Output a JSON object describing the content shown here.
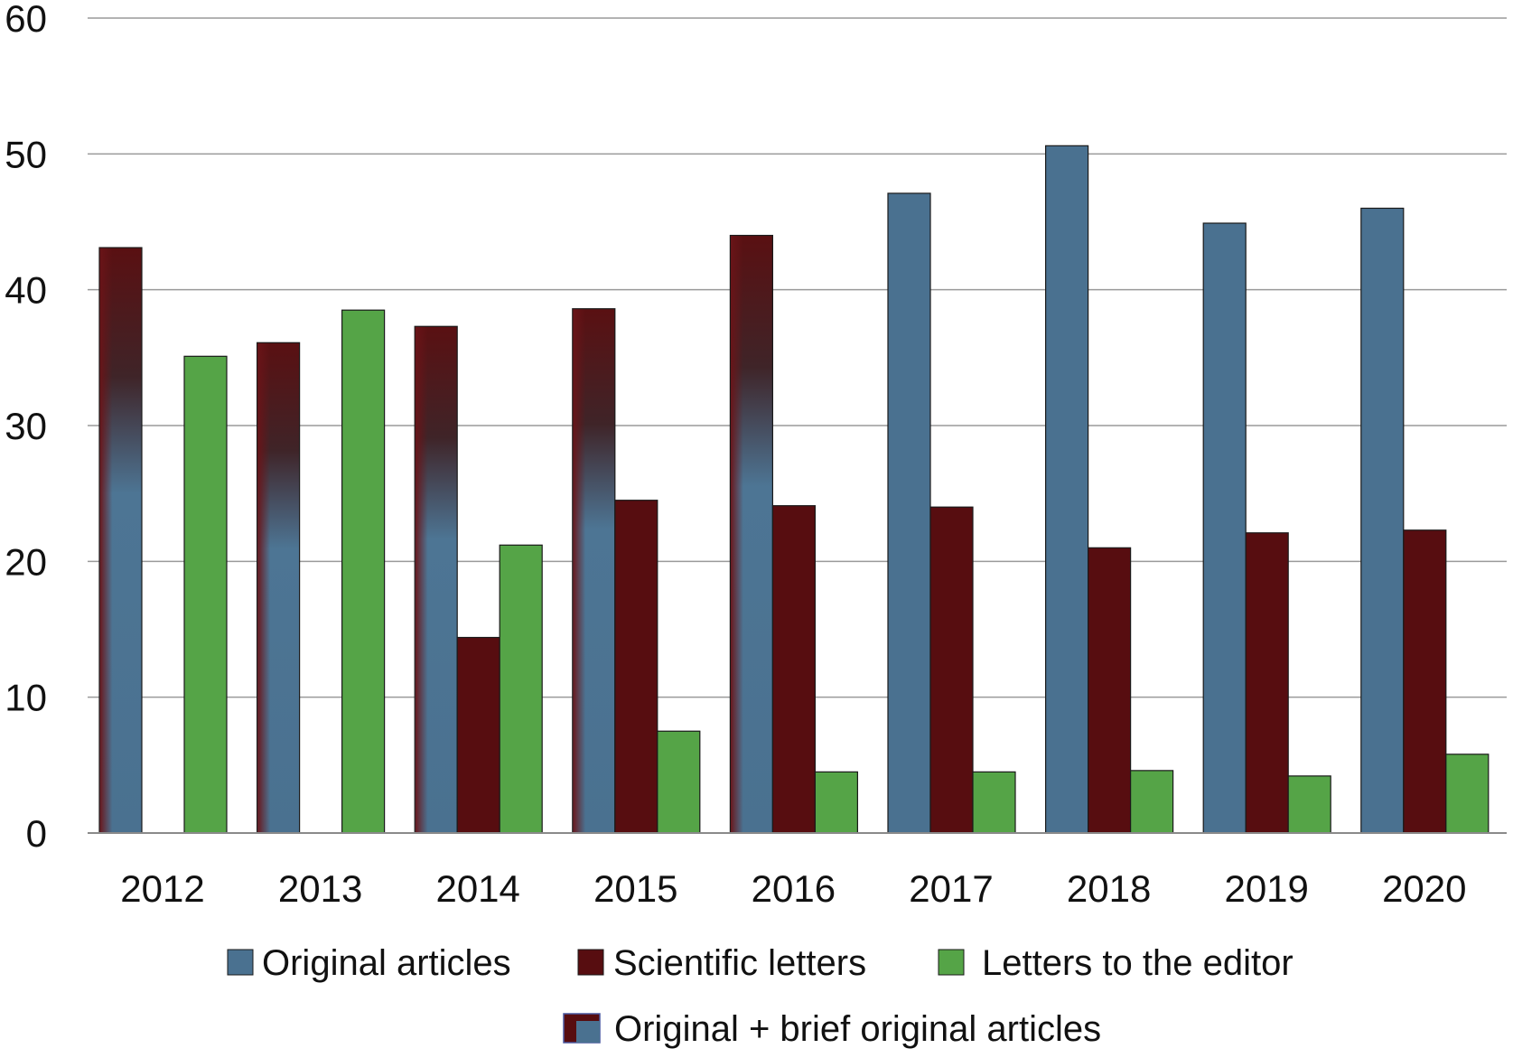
{
  "chart_data": {
    "type": "bar",
    "title": "",
    "xlabel": "",
    "ylabel": "",
    "ylim": [
      0,
      60
    ],
    "yticks": [
      "0",
      "10",
      "20",
      "30",
      "40",
      "50",
      "60"
    ],
    "grid": true,
    "legend_position": "bottom",
    "categories": [
      "2012",
      "2013",
      "2014",
      "2015",
      "2016",
      "2017",
      "2018",
      "2019",
      "2020"
    ],
    "series": [
      {
        "name": "Original articles",
        "legend_label": "Original articles",
        "color": "#4a7190",
        "values": [
          43.1,
          36.1,
          37.3,
          38.6,
          44.0,
          47.1,
          50.6,
          44.9,
          46.0
        ],
        "gradient_categories": [
          "2012",
          "2013",
          "2014",
          "2015",
          "2016"
        ]
      },
      {
        "name": "Scientific letters",
        "legend_label": "Scientific letters",
        "color": "#570d10",
        "values": [
          null,
          null,
          14.4,
          24.5,
          24.1,
          24.0,
          21.0,
          22.1,
          22.3
        ]
      },
      {
        "name": "Letters to the editor",
        "legend_label": "Letters to the editor",
        "color": "#55a447",
        "values": [
          35.1,
          38.5,
          21.2,
          7.5,
          4.5,
          4.5,
          4.6,
          4.2,
          5.8
        ]
      }
    ],
    "extra_legend": {
      "label": "Original + brief original articles",
      "colors": [
        "#570d10",
        "#4a7190"
      ]
    }
  }
}
